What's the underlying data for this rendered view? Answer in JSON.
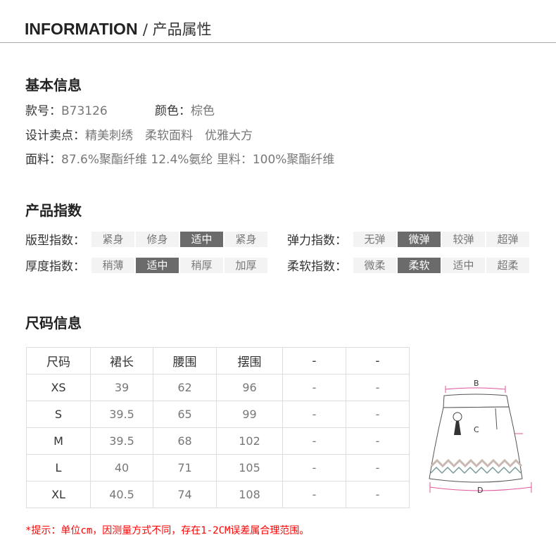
{
  "header": {
    "title_en": "INFORMATION",
    "title_cn": "/ 产品属性"
  },
  "basic": {
    "title": "基本信息",
    "style_label": "款号：",
    "style_value": "B73126",
    "color_label": "颜色：",
    "color_value": "棕色",
    "design_label": "设计卖点：",
    "design_value": "精美刺绣　柔软面料　优雅大方",
    "fabric_label": "面料：",
    "fabric_value": "87.6%聚酯纤维 12.4%氨纶 里料：100%聚酯纤维"
  },
  "index": {
    "title": "产品指数",
    "groups": [
      {
        "label": "版型指数：",
        "options": [
          "紧身",
          "修身",
          "适中",
          "紧身"
        ],
        "selected": 2
      },
      {
        "label": "弹力指数：",
        "options": [
          "无弹",
          "微弹",
          "较弹",
          "超弹"
        ],
        "selected": 1
      },
      {
        "label": "厚度指数：",
        "options": [
          "稍薄",
          "适中",
          "稍厚",
          "加厚"
        ],
        "selected": 1
      },
      {
        "label": "柔软指数：",
        "options": [
          "微柔",
          "柔软",
          "适中",
          "超柔"
        ],
        "selected": 1
      }
    ]
  },
  "size": {
    "title": "尺码信息",
    "headers": [
      "尺码",
      "裙长",
      "腰围",
      "摆围",
      "-",
      "-"
    ],
    "rows": [
      [
        "XS",
        "39",
        "62",
        "96",
        "-",
        "-"
      ],
      [
        "S",
        "39.5",
        "65",
        "99",
        "-",
        "-"
      ],
      [
        "M",
        "39.5",
        "68",
        "102",
        "-",
        "-"
      ],
      [
        "L",
        "40",
        "71",
        "105",
        "-",
        "-"
      ],
      [
        "XL",
        "40.5",
        "74",
        "108",
        "-",
        "-"
      ]
    ],
    "diagram_labels": [
      "B",
      "C",
      "D"
    ],
    "note": "*提示：单位cm，因测量方式不同，存在1-2CM误差属合理范围。"
  },
  "colors": {
    "note": "#ff0000",
    "selected": "#6b6b6b",
    "measure": "#e0559a"
  }
}
